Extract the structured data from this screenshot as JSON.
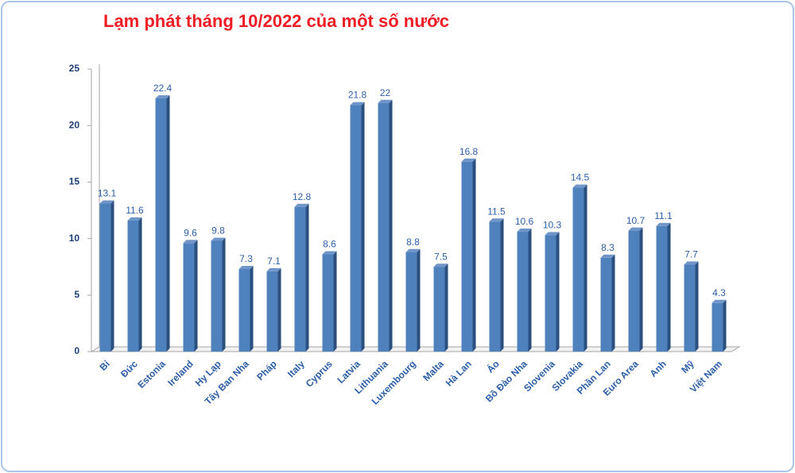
{
  "chart_data": {
    "type": "bar",
    "title": "Lạm phát tháng 10/2022 của một số nước",
    "categories": [
      "Bỉ",
      "Đức",
      "Estonia",
      "Ireland",
      "Hy Lạp",
      "Tây Ban Nha",
      "Pháp",
      "Italy",
      "Cyprus",
      "Latvia",
      "Lithuania",
      "Luxembourg",
      "Malta",
      "Hà Lan",
      "Áo",
      "Bồ Đào Nha",
      "Slovenia",
      "Slovakia",
      "Phần Lan",
      "Euro Area",
      "Anh",
      "Mỹ",
      "Việt Nam"
    ],
    "values": [
      13.1,
      11.6,
      22.4,
      9.6,
      9.8,
      7.3,
      7.1,
      12.8,
      8.6,
      21.8,
      22,
      8.8,
      7.5,
      16.8,
      11.5,
      10.6,
      10.3,
      14.5,
      8.3,
      10.7,
      11.1,
      7.7,
      4.3
    ],
    "color": "#4f81bd",
    "ylim": [
      0,
      25
    ],
    "yticks": [
      0,
      5,
      10,
      15,
      20,
      25
    ],
    "grid": false
  }
}
